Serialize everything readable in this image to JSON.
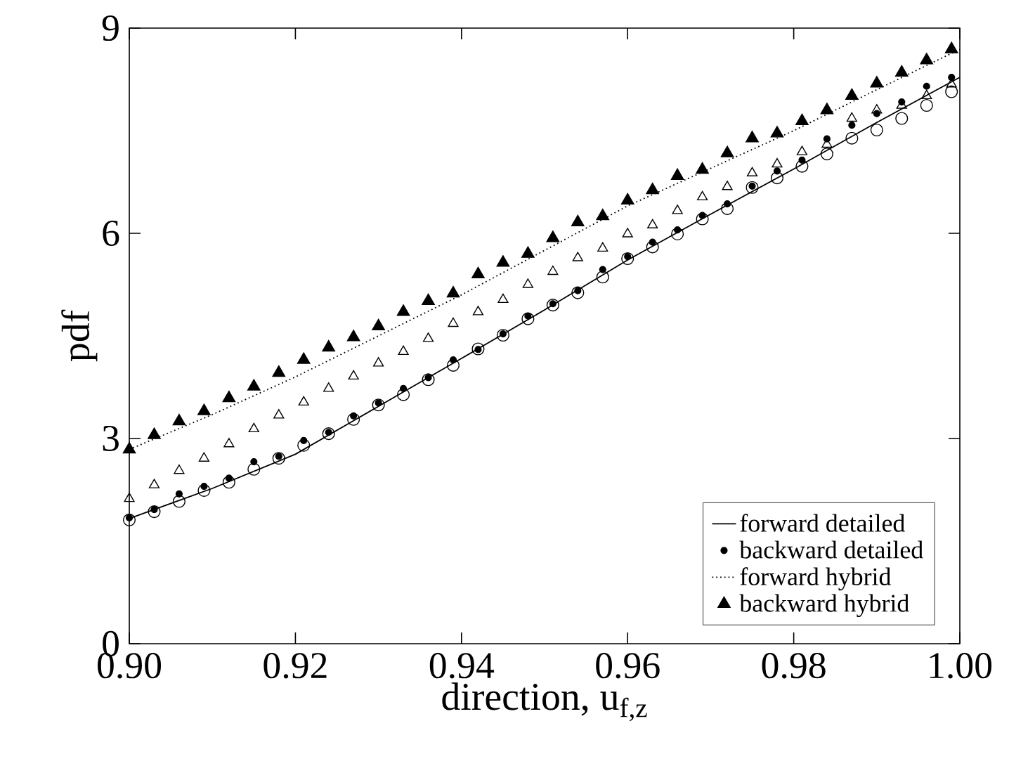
{
  "chart_data": {
    "type": "scatter",
    "xlabel": "direction, u$_{f,z}$",
    "ylabel": "pdf",
    "xlim": [
      0.9,
      1.0
    ],
    "ylim": [
      0,
      9
    ],
    "xticks": [
      {
        "value": 0.9,
        "label": "0.90"
      },
      0.92,
      0.94,
      0.96,
      0.98,
      {
        "value": 1.0,
        "label": "1.00"
      }
    ],
    "yticks": [
      0,
      3,
      6,
      9
    ],
    "grid": false,
    "legend": "bottom right",
    "series": [
      {
        "name": "forward detailed",
        "type": "line",
        "color": "#000000",
        "marker": "none",
        "line_style": "solid",
        "x": [
          0.9,
          0.91,
          0.92,
          0.93,
          0.94,
          0.95,
          0.96,
          0.97,
          0.98,
          0.99,
          1.0
        ],
        "values": [
          1.83,
          2.27,
          2.77,
          3.47,
          4.17,
          4.88,
          5.61,
          6.28,
          6.94,
          7.62,
          8.28
        ]
      },
      {
        "name": "backward detailed",
        "type": "scatter",
        "color": "#000000",
        "marker": "circle",
        "values": [
          1.84,
          1.96,
          2.19,
          2.3,
          2.42,
          2.66,
          2.74,
          2.97,
          3.09,
          3.33,
          3.52,
          3.73,
          3.89,
          4.15,
          4.3,
          4.53,
          4.79,
          4.97,
          5.16,
          5.47,
          5.66,
          5.87,
          6.05,
          6.26,
          6.43,
          6.69,
          6.91,
          7.07,
          7.38,
          7.58,
          7.75,
          7.92,
          8.15,
          8.28
        ]
      },
      {
        "name": "forward hybrid",
        "type": "line",
        "color": "#000000",
        "marker": "none",
        "line_style": "dotted",
        "x": [
          0.9,
          0.91,
          0.92,
          0.93,
          0.94,
          0.95,
          0.96,
          0.97,
          0.98,
          0.99,
          1.0
        ],
        "values": [
          2.84,
          3.35,
          3.9,
          4.5,
          5.1,
          5.75,
          6.4,
          6.95,
          7.5,
          8.1,
          8.69
        ]
      },
      {
        "name": "backward hybrid",
        "type": "scatter",
        "color": "#000000",
        "marker": "triangle",
        "values": [
          2.84,
          3.05,
          3.25,
          3.4,
          3.59,
          3.76,
          3.96,
          4.15,
          4.33,
          4.48,
          4.64,
          4.85,
          5.01,
          5.12,
          5.4,
          5.57,
          5.7,
          5.93,
          6.16,
          6.25,
          6.48,
          6.63,
          6.84,
          6.93,
          7.17,
          7.39,
          7.46,
          7.64,
          7.8,
          8.01,
          8.19,
          8.35,
          8.53,
          8.69
        ]
      },
      {
        "type": "scatter",
        "color": "#000000",
        "marker": "circle",
        "values": [
          1.81,
          1.93,
          2.08,
          2.24,
          2.36,
          2.55,
          2.71,
          2.9,
          3.07,
          3.28,
          3.49,
          3.64,
          3.86,
          4.07,
          4.31,
          4.51,
          4.75,
          4.95,
          5.13,
          5.36,
          5.63,
          5.8,
          5.99,
          6.21,
          6.36,
          6.67,
          6.81,
          6.98,
          7.16,
          7.39,
          7.51,
          7.68,
          7.87,
          8.07
        ]
      },
      {
        "type": "scatter",
        "color": "#000000",
        "marker": "triangle",
        "values": [
          2.12,
          2.32,
          2.53,
          2.71,
          2.92,
          3.14,
          3.34,
          3.53,
          3.73,
          3.91,
          4.1,
          4.27,
          4.46,
          4.68,
          4.85,
          5.03,
          5.25,
          5.44,
          5.64,
          5.78,
          5.99,
          6.12,
          6.33,
          6.53,
          6.68,
          6.88,
          7.01,
          7.19,
          7.3,
          7.68,
          7.8,
          7.87,
          8.01,
          8.18
        ]
      }
    ],
    "x": [
      0.9,
      0.903,
      0.906,
      0.909,
      0.912,
      0.915,
      0.918,
      0.921,
      0.924,
      0.927,
      0.93,
      0.933,
      0.936,
      0.939,
      0.942,
      0.945,
      0.948,
      0.951,
      0.954,
      0.957,
      0.96,
      0.963,
      0.966,
      0.969,
      0.972,
      0.975,
      0.978,
      0.981,
      0.984,
      0.987,
      0.99,
      0.993,
      0.996,
      0.999
    ]
  }
}
